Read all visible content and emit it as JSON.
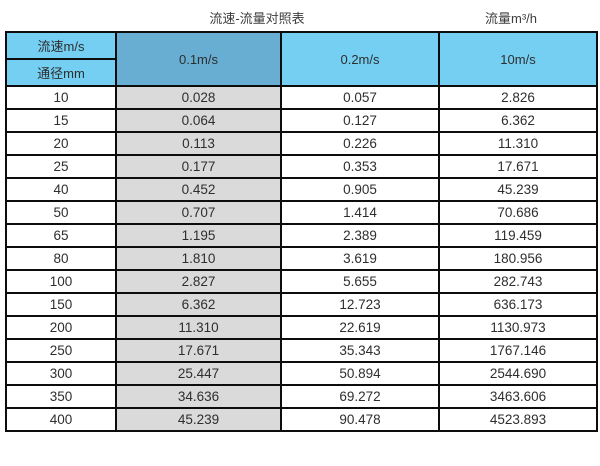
{
  "header": {
    "table_title": "流速-流量对照表",
    "unit_title": "流量m³/h"
  },
  "chart_data": {
    "type": "table",
    "title": "流速-流量对照表",
    "unit_label": "流量m³/h",
    "corner_cell": {
      "top": "流速m/s",
      "bottom": "通径mm"
    },
    "velocity_columns": [
      "0.1m/s",
      "0.2m/s",
      "10m/s"
    ],
    "diameter_column_label": "通径mm",
    "rows": [
      [
        "10",
        "0.028",
        "0.057",
        "2.826"
      ],
      [
        "15",
        "0.064",
        "0.127",
        "6.362"
      ],
      [
        "20",
        "0.113",
        "0.226",
        "11.310"
      ],
      [
        "25",
        "0.177",
        "0.353",
        "17.671"
      ],
      [
        "40",
        "0.452",
        "0.905",
        "45.239"
      ],
      [
        "50",
        "0.707",
        "1.414",
        "70.686"
      ],
      [
        "65",
        "1.195",
        "2.389",
        "119.459"
      ],
      [
        "80",
        "1.810",
        "3.619",
        "180.956"
      ],
      [
        "100",
        "2.827",
        "5.655",
        "282.743"
      ],
      [
        "150",
        "6.362",
        "12.723",
        "636.173"
      ],
      [
        "200",
        "11.310",
        "22.619",
        "1130.973"
      ],
      [
        "250",
        "17.671",
        "35.343",
        "1767.146"
      ],
      [
        "300",
        "25.447",
        "50.894",
        "2544.690"
      ],
      [
        "350",
        "34.636",
        "69.272",
        "3463.606"
      ],
      [
        "400",
        "45.239",
        "90.478",
        "4523.893"
      ]
    ]
  },
  "colors": {
    "header_light_blue": "#74cff2",
    "header_dark_blue": "#67aed2",
    "first_value_column_gray": "#dadada",
    "border": "#0d0d0d",
    "text": "#2e2e2e",
    "background": "#ffffff"
  }
}
